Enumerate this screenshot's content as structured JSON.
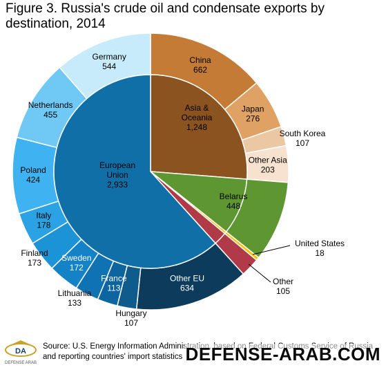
{
  "title": "Figure 3. Russia's crude oil and condensate exports by destination, 2014",
  "source": "Source: U.S. Energy Information Administration, based on Federal Customs Service of Russia and reporting countries' import statistics",
  "watermark": "DEFENSE-ARAB.COM",
  "logo_text": "DEFENSE ARAB",
  "chart_data": {
    "type": "pie",
    "title": "Figure 3. Russia's crude oil and condensate exports by destination, 2014",
    "inner": [
      {
        "name": "Asia & Oceania",
        "value": "1,248",
        "color": "#8b531f"
      },
      {
        "name": "Belarus",
        "value": "448",
        "color": "#5e9732"
      },
      {
        "name": "United States",
        "value": "18",
        "color": "#ffc000"
      },
      {
        "name": "Other",
        "value": "105",
        "color": "#b03a48"
      },
      {
        "name": "European Union",
        "value": "2,933",
        "color": "#0f6fa6"
      }
    ],
    "outer": [
      {
        "name": "China",
        "value": "662",
        "color": "#c37b35"
      },
      {
        "name": "Japan",
        "value": "276",
        "color": "#dfa264"
      },
      {
        "name": "South Korea",
        "value": "107",
        "color": "#ebc7a3"
      },
      {
        "name": "Other Asia",
        "value": "203",
        "color": "#f7e2cf"
      },
      {
        "name": "Belarus",
        "value": "448",
        "color": "#5e9732"
      },
      {
        "name": "United States",
        "value": "18",
        "color": "#ffc000"
      },
      {
        "name": "Other",
        "value": "105",
        "color": "#b03a48"
      },
      {
        "name": "Other EU",
        "value": "634",
        "color": "#0d3b5c"
      },
      {
        "name": "Hungary",
        "value": "107",
        "color": "#0f5b8c"
      },
      {
        "name": "France",
        "value": "113",
        "color": "#0d65a0"
      },
      {
        "name": "Lithuania",
        "value": "133",
        "color": "#0e72b3"
      },
      {
        "name": "Sweden",
        "value": "172",
        "color": "#1382c6"
      },
      {
        "name": "Finland",
        "value": "173",
        "color": "#1c93d6"
      },
      {
        "name": "Italy",
        "value": "178",
        "color": "#2aa2e3"
      },
      {
        "name": "Poland",
        "value": "424",
        "color": "#3fb3f1"
      },
      {
        "name": "Netherlands",
        "value": "455",
        "color": "#70c8f5"
      },
      {
        "name": "Germany",
        "value": "544",
        "color": "#c8ebfb"
      }
    ]
  }
}
